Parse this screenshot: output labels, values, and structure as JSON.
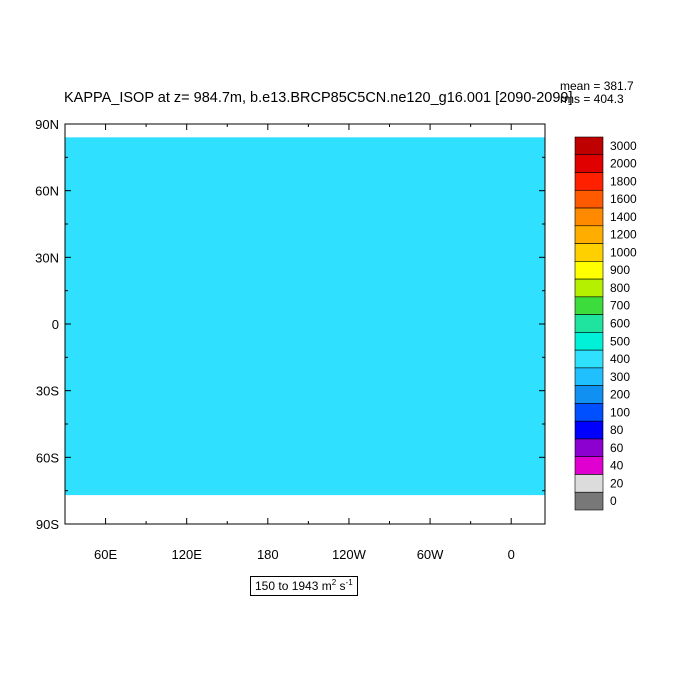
{
  "chart_data": {
    "type": "heatmap",
    "title": "KAPPA_ISOP at z= 984.7m, b.e13.BRCP85C5CN.ne120_g16.001 [2090-2099]",
    "stats": {
      "mean_label": "mean = 381.7",
      "rms_label": "rms = 404.3"
    },
    "units_label": {
      "prefix": "150 to 1943 m",
      "sup1": "2",
      "mid": " s",
      "sup2": "-1"
    },
    "lat_ticks": [
      "90N",
      "60N",
      "30N",
      "0",
      "30S",
      "60S",
      "90S"
    ],
    "lon_ticks": [
      "60E",
      "120E",
      "180",
      "120W",
      "60W",
      "0"
    ],
    "lon_range": [
      30,
      385
    ],
    "lat_range": [
      -90,
      90
    ],
    "colorbar": {
      "levels": [
        "3000",
        "2000",
        "1800",
        "1600",
        "1400",
        "1200",
        "1000",
        "900",
        "800",
        "700",
        "600",
        "500",
        "400",
        "300",
        "200",
        "100",
        "80",
        "60",
        "40",
        "20",
        "0"
      ],
      "colors": [
        "#bf0000",
        "#e00000",
        "#ff2000",
        "#ff5a00",
        "#ff8a00",
        "#ffae00",
        "#ffd000",
        "#ffff00",
        "#b4f000",
        "#3cdc3c",
        "#1ee4a0",
        "#00f0d8",
        "#30e0ff",
        "#20c0ff",
        "#1090f0",
        "#0050ff",
        "#0000ff",
        "#8c00d0",
        "#e000d0",
        "#dcdcdc",
        "#787878"
      ]
    }
  }
}
